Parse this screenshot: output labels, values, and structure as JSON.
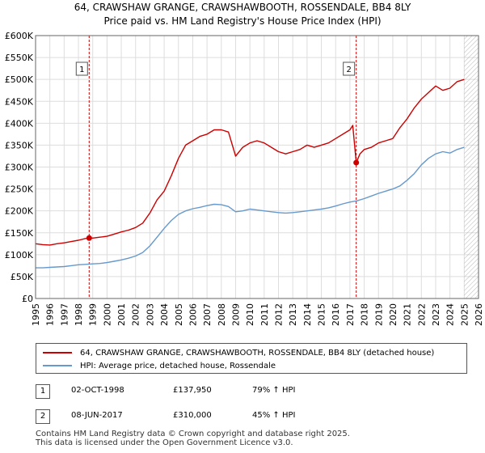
{
  "title_line1": "64, CRAWSHAW GRANGE, CRAWSHAWBOOTH, ROSSENDALE, BB4 8LY",
  "title_line2": "Price paid vs. HM Land Registry's House Price Index (HPI)",
  "colors": {
    "property": "#cc0000",
    "hpi": "#6699cc",
    "grid": "#dddddd",
    "marker_line": "#cc0000",
    "hatch": "#999999"
  },
  "chart_data": {
    "type": "line",
    "xlim": [
      1995,
      2026
    ],
    "ylim": [
      0,
      600000
    ],
    "x_ticks": [
      "1995",
      "1996",
      "1997",
      "1998",
      "1999",
      "2000",
      "2001",
      "2002",
      "2003",
      "2004",
      "2005",
      "2006",
      "2007",
      "2008",
      "2009",
      "2010",
      "2011",
      "2012",
      "2013",
      "2014",
      "2015",
      "2016",
      "2017",
      "2018",
      "2019",
      "2020",
      "2021",
      "2022",
      "2023",
      "2024",
      "2025",
      "2026"
    ],
    "y_ticks": [
      {
        "value": 0,
        "label": "£0"
      },
      {
        "value": 50000,
        "label": "£50K"
      },
      {
        "value": 100000,
        "label": "£100K"
      },
      {
        "value": 150000,
        "label": "£150K"
      },
      {
        "value": 200000,
        "label": "£200K"
      },
      {
        "value": 250000,
        "label": "£250K"
      },
      {
        "value": 300000,
        "label": "£300K"
      },
      {
        "value": 350000,
        "label": "£350K"
      },
      {
        "value": 400000,
        "label": "£400K"
      },
      {
        "value": 450000,
        "label": "£450K"
      },
      {
        "value": 500000,
        "label": "£500K"
      },
      {
        "value": 550000,
        "label": "£550K"
      },
      {
        "value": 600000,
        "label": "£600K"
      }
    ],
    "future_hatch_start": 2025.0,
    "series": [
      {
        "name": "64, CRAWSHAW GRANGE, CRAWSHAWBOOTH, ROSSENDALE, BB4 8LY (detached house)",
        "color": "#cc0000",
        "x": [
          1995.0,
          1995.5,
          1996.0,
          1996.5,
          1997.0,
          1997.5,
          1998.0,
          1998.5,
          1998.75,
          1999.0,
          1999.5,
          2000.0,
          2000.5,
          2001.0,
          2001.5,
          2002.0,
          2002.5,
          2003.0,
          2003.5,
          2004.0,
          2004.5,
          2005.0,
          2005.5,
          2006.0,
          2006.5,
          2007.0,
          2007.5,
          2008.0,
          2008.5,
          2009.0,
          2009.5,
          2010.0,
          2010.5,
          2011.0,
          2011.5,
          2012.0,
          2012.5,
          2013.0,
          2013.5,
          2014.0,
          2014.5,
          2015.0,
          2015.5,
          2016.0,
          2016.5,
          2017.0,
          2017.2,
          2017.44,
          2017.7,
          2018.0,
          2018.5,
          2019.0,
          2019.5,
          2020.0,
          2020.5,
          2021.0,
          2021.5,
          2022.0,
          2022.5,
          2023.0,
          2023.5,
          2024.0,
          2024.5,
          2025.0
        ],
        "values": [
          125000,
          123000,
          122000,
          125000,
          127000,
          130000,
          133000,
          137000,
          137950,
          138000,
          140000,
          142000,
          147000,
          152000,
          156000,
          162000,
          172000,
          195000,
          225000,
          245000,
          280000,
          320000,
          350000,
          360000,
          370000,
          375000,
          385000,
          385000,
          380000,
          325000,
          345000,
          355000,
          360000,
          355000,
          345000,
          335000,
          330000,
          335000,
          340000,
          350000,
          345000,
          350000,
          355000,
          365000,
          375000,
          385000,
          395000,
          310000,
          330000,
          340000,
          345000,
          355000,
          360000,
          365000,
          390000,
          410000,
          435000,
          455000,
          470000,
          485000,
          475000,
          480000,
          495000,
          500000
        ]
      },
      {
        "name": "HPI: Average price, detached house, Rossendale",
        "color": "#6699cc",
        "x": [
          1995.0,
          1995.5,
          1996.0,
          1996.5,
          1997.0,
          1997.5,
          1998.0,
          1998.5,
          1999.0,
          1999.5,
          2000.0,
          2000.5,
          2001.0,
          2001.5,
          2002.0,
          2002.5,
          2003.0,
          2003.5,
          2004.0,
          2004.5,
          2005.0,
          2005.5,
          2006.0,
          2006.5,
          2007.0,
          2007.5,
          2008.0,
          2008.5,
          2009.0,
          2009.5,
          2010.0,
          2010.5,
          2011.0,
          2011.5,
          2012.0,
          2012.5,
          2013.0,
          2013.5,
          2014.0,
          2014.5,
          2015.0,
          2015.5,
          2016.0,
          2016.5,
          2017.0,
          2017.5,
          2018.0,
          2018.5,
          2019.0,
          2019.5,
          2020.0,
          2020.5,
          2021.0,
          2021.5,
          2022.0,
          2022.5,
          2023.0,
          2023.5,
          2024.0,
          2024.5,
          2025.0
        ],
        "values": [
          70000,
          70000,
          71000,
          72000,
          73000,
          75000,
          77000,
          78000,
          79000,
          80000,
          82000,
          85000,
          88000,
          92000,
          97000,
          105000,
          120000,
          140000,
          160000,
          178000,
          192000,
          200000,
          205000,
          208000,
          212000,
          215000,
          214000,
          210000,
          198000,
          200000,
          204000,
          202000,
          200000,
          198000,
          196000,
          195000,
          196000,
          198000,
          200000,
          202000,
          204000,
          207000,
          211000,
          216000,
          220000,
          223000,
          228000,
          234000,
          240000,
          245000,
          250000,
          257000,
          270000,
          285000,
          305000,
          320000,
          330000,
          335000,
          332000,
          340000,
          345000
        ]
      }
    ],
    "markers": [
      {
        "id": "1",
        "x": 1998.75,
        "value": 137950
      },
      {
        "id": "2",
        "x": 2017.44,
        "value": 310000
      }
    ]
  },
  "legend": {
    "property_label": "64, CRAWSHAW GRANGE, CRAWSHAWBOOTH, ROSSENDALE, BB4 8LY (detached house)",
    "hpi_label": "HPI: Average price, detached house, Rossendale"
  },
  "transactions": [
    {
      "id": "1",
      "date": "02-OCT-1998",
      "price": "£137,950",
      "hpi_change": "79% ↑ HPI"
    },
    {
      "id": "2",
      "date": "08-JUN-2017",
      "price": "£310,000",
      "hpi_change": "45% ↑ HPI"
    }
  ],
  "footer": {
    "line1": "Contains HM Land Registry data © Crown copyright and database right 2025.",
    "line2": "This data is licensed under the Open Government Licence v3.0."
  }
}
